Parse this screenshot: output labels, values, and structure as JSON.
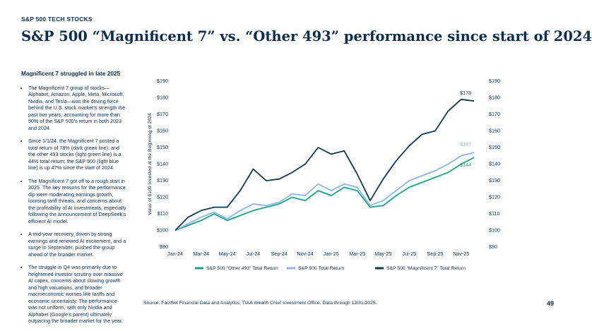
{
  "header": {
    "kicker": "S&P 500 TECH STOCKS",
    "title": "S&P 500 “Magnificent 7” vs. “Other 493” performance since start of 2024"
  },
  "sidebar": {
    "heading": "Magnificent 7 struggled in late 2025",
    "bullets": [
      "The Magnificent 7 group of stocks—Alphabet, Amazon, Apple, Meta, Microsoft, Nvidia, and Tesla—was the driving force behind the U.S. stock market’s strength the past two years, accounting for more than 50% of the S&P 500’s return in both 2023 and 2024.",
      "Since 1/1/24, the Magnificent 7 posted a total return of 78% (dark green line); and the other 493 stocks (light green line) is a 44% total return; the S&P 500 (light blue line) is up 47% since the start of 2024.",
      "The Magnificent 7 got off to a rough start in 2025. The key reasons for the performance dip were moderating earnings growth, looming tariff threats, and concerns about the profitability of AI investments, especially following the announcement of DeepSeek’s efficient AI model.",
      "A mid-year recovery, driven by strong earnings and renewed AI excitement, and a surge in September, pushed the group ahead of the broader market.",
      "The struggle in Q4 was primarily due to heightened investor scrutiny over massive AI capex, concerns about slowing growth and high valuations, and broader macroeconomic worries like tariffs and economic uncertainty. The performance was not uniform, with only Nvidia and Alphabet (Google’s parent) ultimately outpacing the broader market for the year."
    ]
  },
  "source": "Source: FactSet Financial Data and Analytics, TIAA Wealth Chief Investment Office. Data through 12/31/2025.",
  "page_number": "49",
  "chart_data": {
    "type": "line",
    "y_label": "Value of $100 Invested at the Beginning of 2024",
    "x": [
      "Jan-24",
      null,
      "Mar-24",
      null,
      "May-24",
      null,
      "Jul-24",
      null,
      "Sep-24",
      null,
      "Nov-24",
      null,
      "Jan-25",
      null,
      "Mar-25",
      null,
      "May-25",
      null,
      "Jul-25",
      null,
      "Sep-25",
      null,
      "Nov-25",
      null
    ],
    "ylim": [
      90,
      190
    ],
    "yticks": [
      {
        "value": 90,
        "label": "$90"
      },
      {
        "value": 100,
        "label": "$100"
      },
      {
        "value": 110,
        "label": "$110"
      },
      {
        "value": 120,
        "label": "$120"
      },
      {
        "value": 130,
        "label": "$130"
      },
      {
        "value": 140,
        "label": "$140"
      },
      {
        "value": 150,
        "label": "$150"
      },
      {
        "value": 160,
        "label": "$160"
      },
      {
        "value": 170,
        "label": "$170"
      },
      {
        "value": 180,
        "label": "$180"
      },
      {
        "value": 190,
        "label": "$190"
      }
    ],
    "y2lim": [
      90,
      190
    ],
    "grid": false,
    "series": [
      {
        "name": "S&P 500 “Other 493” Total Return",
        "color": "#1aa187",
        "values": [
          100,
          103,
          106,
          110,
          106,
          109,
          112,
          114,
          116,
          120,
          118,
          124,
          121,
          126,
          124,
          114,
          115,
          121,
          126,
          129,
          132,
          135,
          140,
          144
        ],
        "value_labels": [
          null,
          null,
          null,
          null,
          null,
          null,
          null,
          null,
          null,
          null,
          null,
          null,
          null,
          null,
          null,
          null,
          null,
          null,
          null,
          null,
          null,
          null,
          null,
          "$144"
        ]
      },
      {
        "name": "S&P 500 Total Return",
        "color": "#8db4e8",
        "values": [
          100,
          104,
          108,
          111,
          107,
          112,
          116,
          115,
          117,
          122,
          121,
          128,
          124,
          128,
          126,
          115,
          118,
          124,
          130,
          133,
          136,
          140,
          145,
          147
        ],
        "value_labels": [
          null,
          null,
          null,
          null,
          null,
          null,
          null,
          null,
          null,
          null,
          null,
          null,
          null,
          null,
          null,
          null,
          null,
          null,
          null,
          null,
          null,
          null,
          null,
          "$147"
        ]
      },
      {
        "name": "S&P 500 “Magnificent 7” Total Return",
        "color": "#0e3a4a",
        "values": [
          100,
          108,
          112,
          114,
          114,
          124,
          137,
          130,
          131,
          135,
          140,
          150,
          146,
          148,
          134,
          118,
          131,
          142,
          151,
          158,
          160,
          172,
          179,
          178
        ],
        "value_labels": [
          null,
          null,
          null,
          null,
          null,
          null,
          null,
          null,
          null,
          null,
          null,
          null,
          null,
          null,
          null,
          null,
          null,
          null,
          null,
          null,
          null,
          null,
          null,
          "$178"
        ]
      }
    ]
  }
}
